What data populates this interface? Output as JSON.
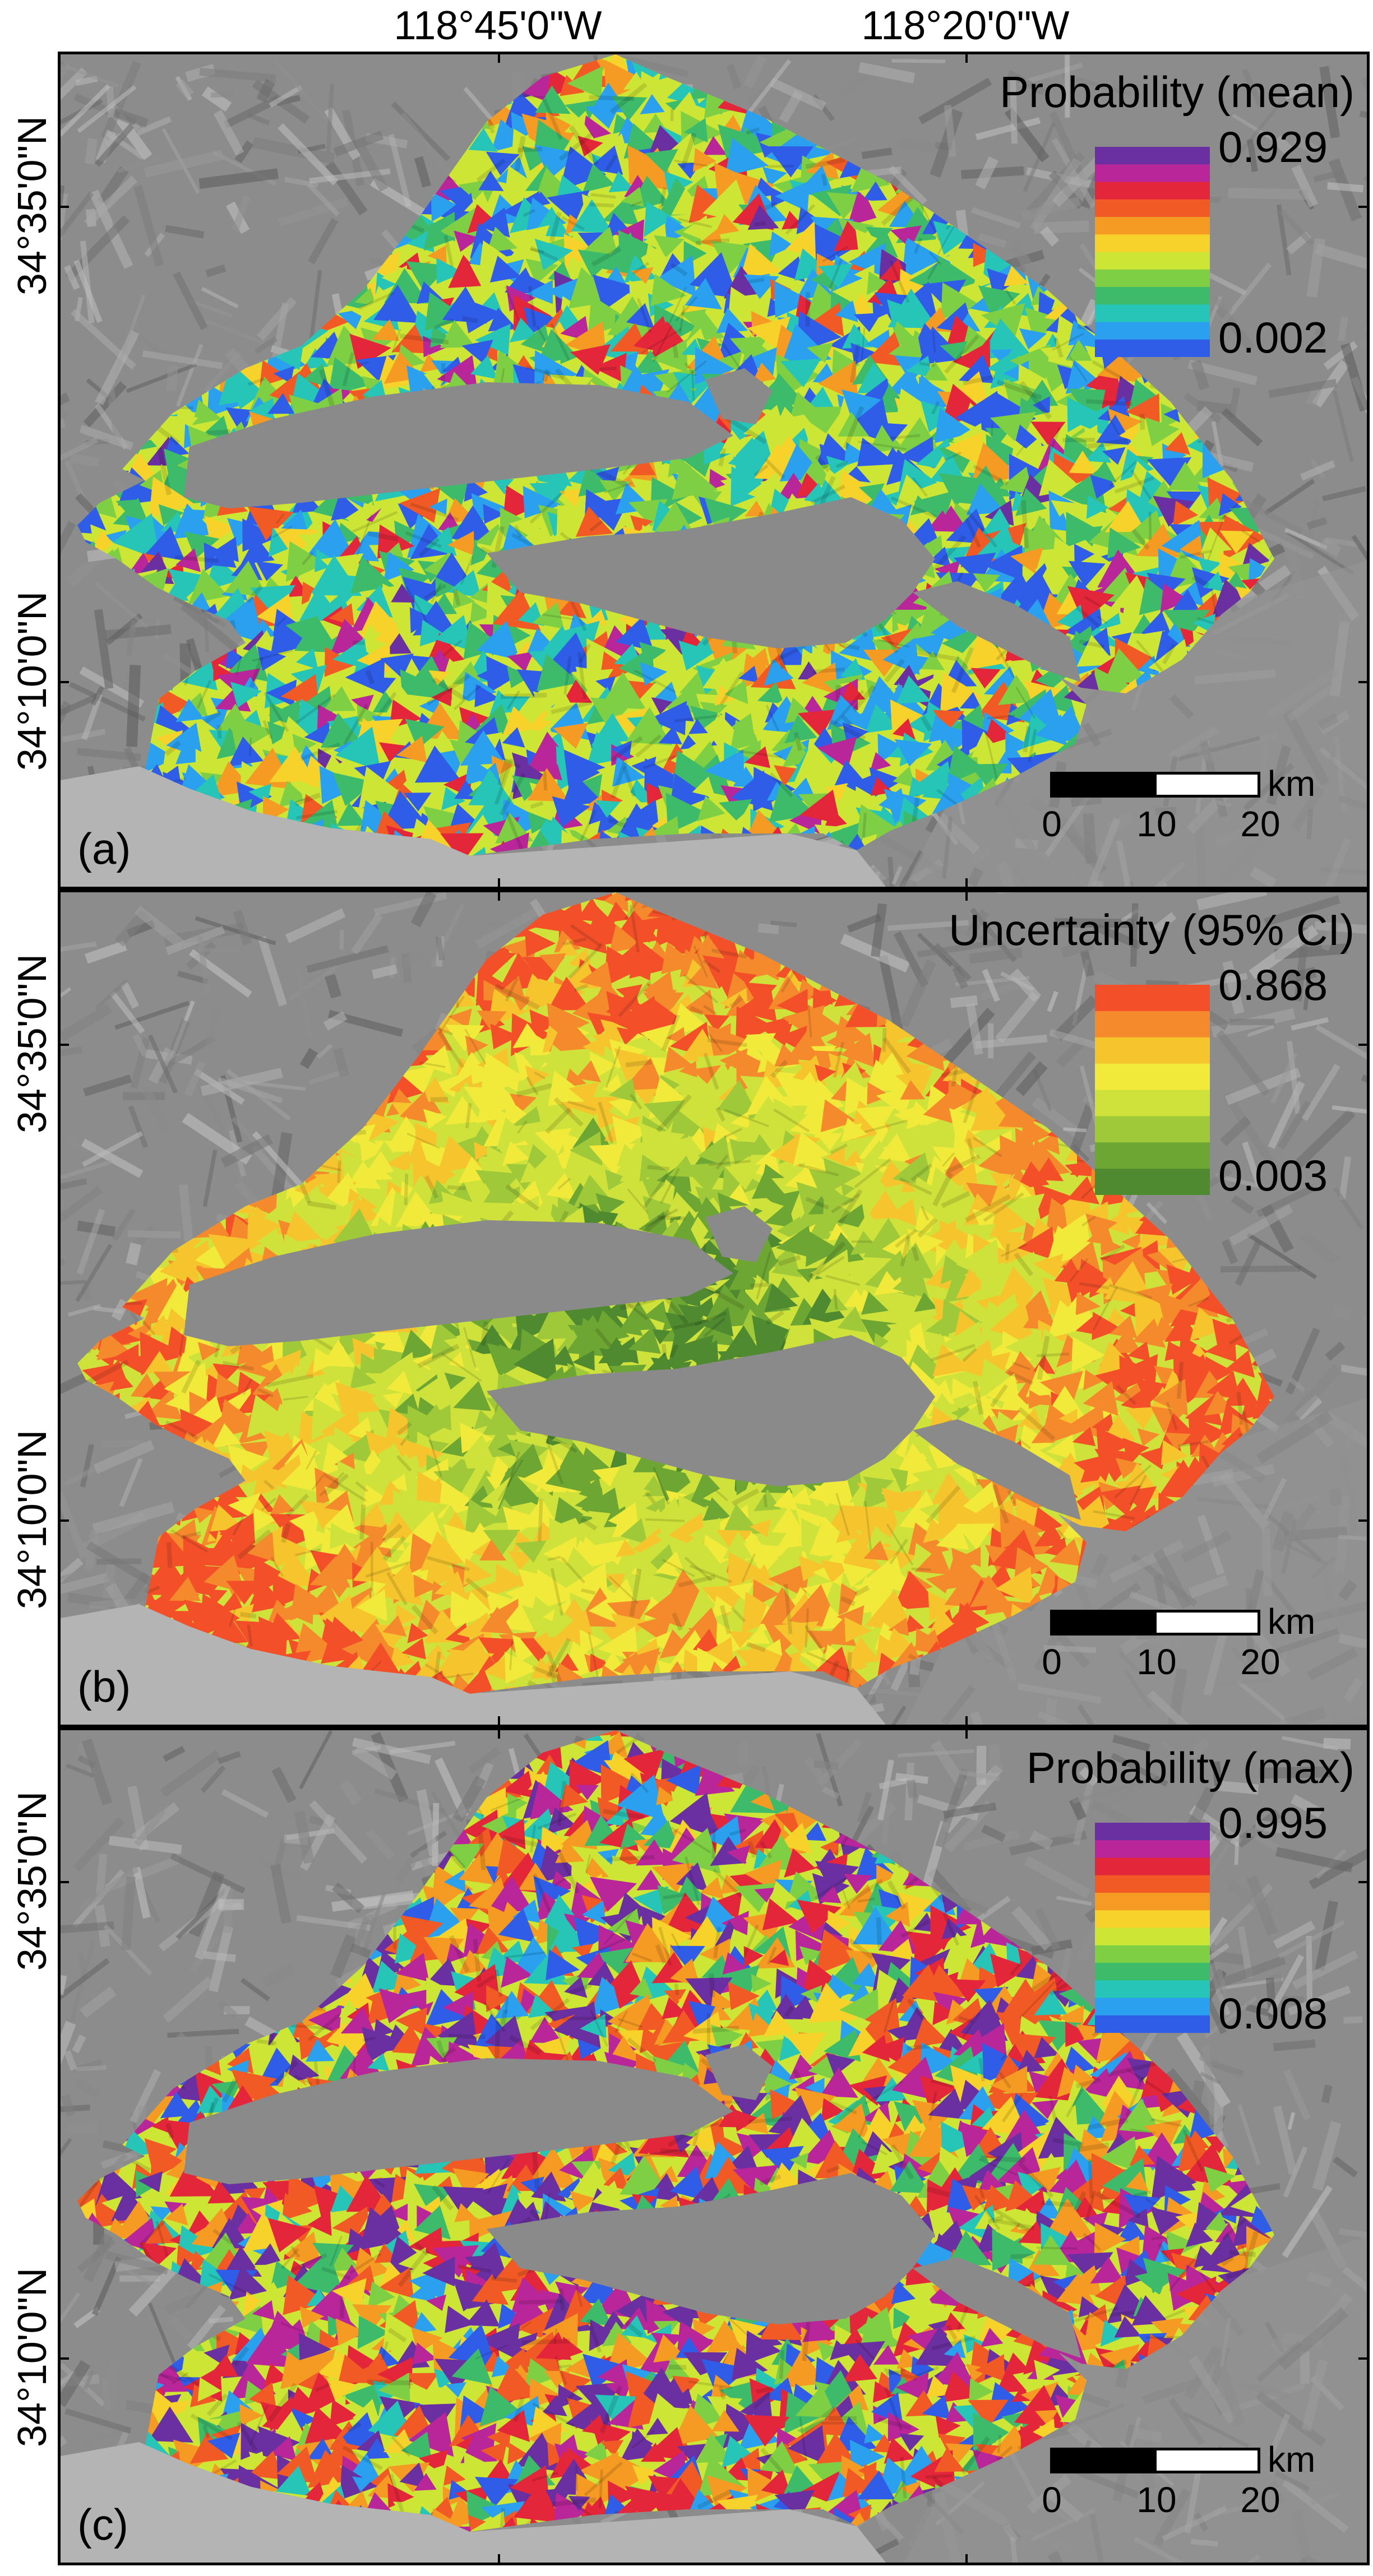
{
  "map": {
    "longitude_labels": [
      "118°45'0\"W",
      "118°20'0\"W"
    ],
    "latitude_labels": [
      "34°35'0\"N",
      "34°10'0\"N"
    ],
    "panels": [
      {
        "letter": "(a)",
        "legend_title": "Probability (mean)",
        "legend_max": "0.929",
        "legend_min": "0.002",
        "colormap": "rainbow",
        "colors": [
          "#6a2fa0",
          "#b8269a",
          "#e4263b",
          "#f25a25",
          "#f59a22",
          "#f6d22a",
          "#cde635",
          "#7fcf45",
          "#3dbb6b",
          "#27c4b8",
          "#2aa0ee",
          "#2f5de8"
        ]
      },
      {
        "letter": "(b)",
        "legend_title": "Uncertainty (95% CI)",
        "legend_max": "0.868",
        "legend_min": "0.003",
        "colormap": "orange-yellow-green",
        "colors": [
          "#f3502a",
          "#f58a2c",
          "#f6c52e",
          "#f2ea3a",
          "#cfe23b",
          "#a0c93a",
          "#6ea634",
          "#4f8a30"
        ]
      },
      {
        "letter": "(c)",
        "legend_title": "Probability (max)",
        "legend_max": "0.995",
        "legend_min": "0.008",
        "colormap": "rainbow",
        "colors": [
          "#6a2fa0",
          "#b8269a",
          "#e4263b",
          "#f25a25",
          "#f59a22",
          "#f6d22a",
          "#cde635",
          "#7fcf45",
          "#3dbb6b",
          "#27c4b8",
          "#2aa0ee",
          "#2f5de8"
        ]
      }
    ],
    "scale_bar": {
      "unit": "km",
      "ticks": [
        "0",
        "10",
        "20"
      ]
    },
    "colors": {
      "hillshade": "#8c8c8c",
      "valley_gray": "#8a8a8a",
      "ocean": "#b4b4b4",
      "border": "#000000"
    }
  }
}
